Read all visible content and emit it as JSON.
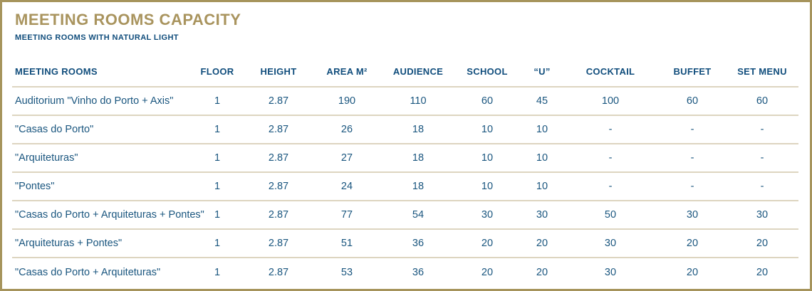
{
  "page": {
    "title": "MEETING ROOMS CAPACITY",
    "subtitle": "MEETING ROOMS WITH NATURAL LIGHT"
  },
  "table": {
    "columns": [
      "MEETING ROOMS",
      "FLOOR",
      "HEIGHT",
      "AREA M²",
      "AUDIENCE",
      "SCHOOL",
      "“U”",
      "COCKTAIL",
      "BUFFET",
      "SET MENU"
    ],
    "rows": [
      [
        "Auditorium \"Vinho do Porto + Axis\"",
        "1",
        "2.87",
        "190",
        "110",
        "60",
        "45",
        "100",
        "60",
        "60"
      ],
      [
        "\"Casas do Porto\"",
        "1",
        "2.87",
        "26",
        "18",
        "10",
        "10",
        "-",
        "-",
        "-"
      ],
      [
        "\"Arquiteturas\"",
        "1",
        "2.87",
        "27",
        "18",
        "10",
        "10",
        "-",
        "-",
        "-"
      ],
      [
        "\"Pontes\"",
        "1",
        "2.87",
        "24",
        "18",
        "10",
        "10",
        "-",
        "-",
        "-"
      ],
      [
        "\"Casas do Porto + Arquiteturas + Pontes\"",
        "1",
        "2.87",
        "77",
        "54",
        "30",
        "30",
        "50",
        "30",
        "30"
      ],
      [
        "\"Arquiteturas + Pontes\"",
        "1",
        "2.87",
        "51",
        "36",
        "20",
        "20",
        "30",
        "20",
        "20"
      ],
      [
        "\"Casas do Porto + Arquiteturas\"",
        "1",
        "2.87",
        "53",
        "36",
        "20",
        "20",
        "30",
        "20",
        "20"
      ]
    ]
  },
  "colors": {
    "title_gold": "#a9945e",
    "text_navy": "#104d7c",
    "row_separator": "#ddd5c0",
    "frame_border": "#a6945c",
    "background": "#ffffff"
  }
}
